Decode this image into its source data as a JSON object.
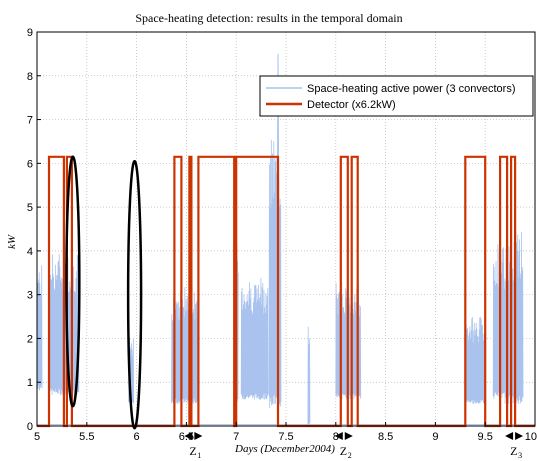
{
  "chart_data": {
    "type": "line",
    "title": "Space-heating detection: results in the temporal domain",
    "xlabel": "Days (December2004)",
    "ylabel": "kW",
    "xlim": [
      5,
      10
    ],
    "ylim": [
      0,
      9
    ],
    "x_ticks": [
      "5",
      "5.5",
      "6",
      "6.5",
      "7",
      "7.5",
      "8",
      "8.5",
      "9",
      "9.5",
      "10"
    ],
    "y_ticks": [
      "0",
      "1",
      "2",
      "3",
      "4",
      "5",
      "6",
      "7",
      "8",
      "9"
    ],
    "grid": true,
    "legend_position": "top-right",
    "colors": {
      "power": "#a9c3ee",
      "detector": "#cc3300",
      "ellipse": "#000000"
    },
    "series": [
      {
        "name": "Space-heating active power (3 convectors)",
        "bursts": [
          {
            "x_start": 5.0,
            "x_end": 5.05,
            "low": 0.8,
            "high": 3.7
          },
          {
            "x_start": 5.12,
            "x_end": 5.42,
            "low": 0.7,
            "high": 4.0
          },
          {
            "x_start": 5.92,
            "x_end": 5.97,
            "low": 0.5,
            "high": 2.0
          },
          {
            "x_start": 6.35,
            "x_end": 6.62,
            "low": 0.5,
            "high": 3.2
          },
          {
            "x_start": 6.98,
            "x_end": 7.02,
            "low": 0.5,
            "high": 4.2
          },
          {
            "x_start": 7.05,
            "x_end": 7.32,
            "low": 0.6,
            "high": 3.4
          },
          {
            "x_start": 7.33,
            "x_end": 7.45,
            "low": 0.4,
            "high": 6.6
          },
          {
            "x_start": 7.72,
            "x_end": 7.74,
            "low": 0.0,
            "high": 2.5
          },
          {
            "x_start": 8.0,
            "x_end": 8.25,
            "low": 0.6,
            "high": 3.3
          },
          {
            "x_start": 9.3,
            "x_end": 9.5,
            "low": 0.5,
            "high": 2.5
          },
          {
            "x_start": 9.58,
            "x_end": 9.7,
            "low": 0.6,
            "high": 4.2
          },
          {
            "x_start": 9.7,
            "x_end": 9.88,
            "low": 0.5,
            "high": 4.5
          }
        ],
        "peak": {
          "x": 7.42,
          "y": 8.5
        }
      },
      {
        "name": "Detector (x6.2kW)",
        "x": [
          5.0,
          5.12,
          5.12,
          5.27,
          5.27,
          5.3,
          5.3,
          5.35,
          5.35,
          6.38,
          6.38,
          6.45,
          6.45,
          6.53,
          6.53,
          6.55,
          6.55,
          6.62,
          6.62,
          6.98,
          6.98,
          7.0,
          7.0,
          7.12,
          7.12,
          7.42,
          7.42,
          8.05,
          8.05,
          8.12,
          8.12,
          8.16,
          8.16,
          8.22,
          8.22,
          9.3,
          9.3,
          9.5,
          9.5,
          9.65,
          9.65,
          9.72,
          9.72,
          9.76,
          9.76,
          9.8,
          9.8,
          10.0
        ],
        "y": [
          0,
          0,
          6.15,
          6.15,
          0,
          0,
          6.15,
          6.15,
          0,
          0,
          6.15,
          6.15,
          0,
          0,
          6.15,
          6.15,
          0,
          0,
          6.15,
          6.15,
          0,
          0,
          6.15,
          6.15,
          6.15,
          6.15,
          0,
          0,
          6.15,
          6.15,
          0,
          0,
          6.15,
          6.15,
          0,
          0,
          6.15,
          6.15,
          0,
          0,
          6.15,
          6.15,
          0,
          0,
          6.15,
          6.15,
          0,
          0
        ]
      }
    ],
    "annotations": {
      "ellipses": [
        {
          "cx": 5.36,
          "cy": 3.3,
          "rx": 0.065,
          "ry": 2.85
        },
        {
          "cx": 5.98,
          "cy": 3.0,
          "rx": 0.065,
          "ry": 3.05
        }
      ],
      "zones": [
        {
          "label": "Z",
          "sub": "1",
          "x": 6.57
        },
        {
          "label": "Z",
          "sub": "2",
          "x": 8.08
        },
        {
          "label": "Z",
          "sub": "3",
          "x": 9.79
        }
      ],
      "arrow_markers": [
        6.57,
        8.08,
        9.79
      ]
    }
  }
}
